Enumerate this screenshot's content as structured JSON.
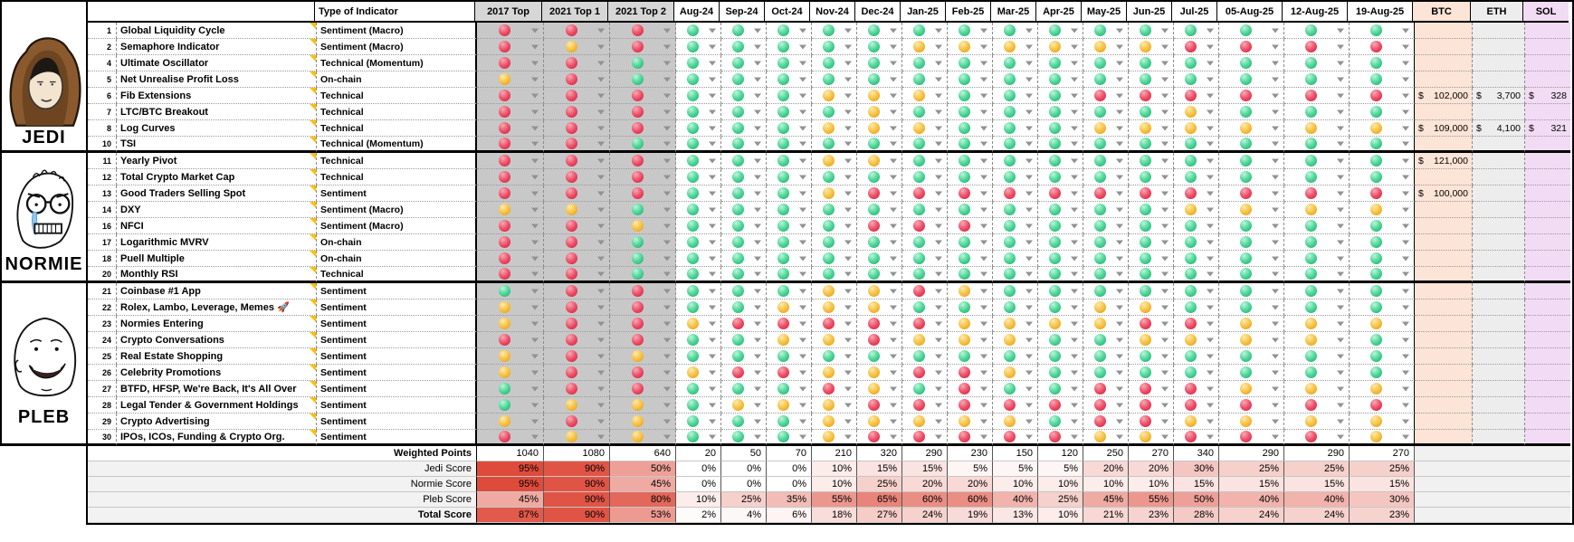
{
  "header": {
    "type_col": "Type of Indicator",
    "columns": [
      "2017 Top",
      "2021 Top 1",
      "2021 Top 2",
      "Aug-24",
      "Sep-24",
      "Oct-24",
      "Nov-24",
      "Dec-24",
      "Jan-25",
      "Feb-25",
      "Mar-25",
      "Apr-25",
      "May-25",
      "Jun-25",
      "Jul-25",
      "05-Aug-25",
      "12-Aug-25",
      "19-Aug-25"
    ],
    "price_columns": [
      "BTC",
      "ETH",
      "SOL"
    ]
  },
  "legend": {
    "dot_colors": {
      "G": "#3ECE8C",
      "Y": "#F5C244",
      "R": "#E94F63"
    }
  },
  "colors": {
    "gray_column_bg": "#C8C8C8",
    "btc_bg": "#FCE4D6",
    "eth_bg": "#EDEDED",
    "sol_bg": "#F2DBF4",
    "score_scale_max_red": "#DE4B3B",
    "note_triangle": "#FFC000"
  },
  "groups": [
    {
      "name": "JEDI",
      "avatar": "hooded-wojak-avatar",
      "rows": [
        {
          "num": 1,
          "label": "Global Liquidity Cycle",
          "type": "Sentiment (Macro)",
          "dots": "RRRGGGGGGGGGGGGGGG"
        },
        {
          "num": 2,
          "label": "Semaphore Indicator",
          "type": "Sentiment (Macro)",
          "dots": "RYRGGGGGYYYYYYRRRR"
        },
        {
          "num": 4,
          "label": "Ultimate Oscillator",
          "type": "Technical (Momentum)",
          "dots": "RRGGGGGGGGGGGGGGGG"
        },
        {
          "num": 5,
          "label": "Net Unrealise Profit Loss",
          "type": "On-chain",
          "dots": "YRGGGGGGGGGGGGGGGG"
        },
        {
          "num": 6,
          "label": "Fib Extensions",
          "type": "Technical",
          "dots": "RRRGGGYYYGGGRRRRRR",
          "prices": {
            "btc": "$ 102,000",
            "eth": "$ 3,700",
            "sol": "$ 328"
          }
        },
        {
          "num": 7,
          "label": "LTC/BTC Breakout",
          "type": "Technical",
          "dots": "RRRGGGGYGGGGGGYGGG"
        },
        {
          "num": 8,
          "label": "Log Curves",
          "type": "Technical",
          "dots": "RRRGGGYYYGGGYYYYYY",
          "prices": {
            "btc": "$ 109,000",
            "eth": "$ 4,100",
            "sol": "$ 321"
          }
        },
        {
          "num": 10,
          "label": "TSI",
          "type": "Technical (Momentum)",
          "dots": "RRGGGGGGGGGGGGGGGG"
        }
      ]
    },
    {
      "name": "NORMIE",
      "avatar": "crying-glasses-wojak-avatar",
      "rows": [
        {
          "num": 11,
          "label": "Yearly Pivot",
          "type": "Technical",
          "dots": "RRRGGGYYGGGGGGGGGG",
          "prices": {
            "btc": "$ 121,000"
          }
        },
        {
          "num": 12,
          "label": "Total Crypto Market Cap",
          "type": "Technical",
          "dots": "RRRGGGGGGGGGGGGGGG"
        },
        {
          "num": 13,
          "label": "Good Traders Selling Spot",
          "type": "Sentiment",
          "dots": "RRRGGGYRRRRRRRRRRR",
          "prices": {
            "btc": "$ 100,000"
          }
        },
        {
          "num": 14,
          "label": "DXY",
          "type": "Sentiment (Macro)",
          "dots": "YYGGGGGGGGGGGGYYYY"
        },
        {
          "num": 16,
          "label": "NFCI",
          "type": "Sentiment (Macro)",
          "dots": "RRYGGGGRRRGGGGGGGG"
        },
        {
          "num": 17,
          "label": "Logarithmic MVRV",
          "type": "On-chain",
          "dots": "RRGGGGGGGGGGGGGGGG"
        },
        {
          "num": 18,
          "label": "Puell Multiple",
          "type": "On-chain",
          "dots": "RRGGGGGGGGGGGGGGGG"
        },
        {
          "num": 20,
          "label": "Monthly RSI",
          "type": "Technical",
          "dots": "RRGGGGGGGGGGGGGGGG"
        }
      ]
    },
    {
      "name": "PLEB",
      "avatar": "smiling-wojak-avatar",
      "rows": [
        {
          "num": 21,
          "label": "Coinbase #1 App",
          "type": "Sentiment",
          "dots": "GRRGGGYYRYGGGGGGGG"
        },
        {
          "num": 22,
          "label": "Rolex, Lambo, Leverage, Memes 🚀",
          "type": "Sentiment",
          "dots": "YRRGGYYYGGGGYYGGGG"
        },
        {
          "num": 23,
          "label": "Normies Entering",
          "type": "Sentiment",
          "dots": "YRRYRRRRRYYYYRRYYY"
        },
        {
          "num": 24,
          "label": "Crypto Conversations",
          "type": "Sentiment",
          "dots": "RRRGGYYRYYYGGYYYYG"
        },
        {
          "num": 25,
          "label": "Real Estate Shopping",
          "type": "Sentiment",
          "dots": "YRYGGGGGGGGGGGGGGG"
        },
        {
          "num": 26,
          "label": "Celebrity Promotions",
          "type": "Sentiment",
          "dots": "YRRYRRYYRRYGGGGGGG"
        },
        {
          "num": 27,
          "label": "BTFD, HFSP, We're Back, It's All Over",
          "type": "Sentiment",
          "dots": "GRRGGGRYGRGGRRRYYY"
        },
        {
          "num": 28,
          "label": "Legal Tender & Government Holdings",
          "type": "Sentiment",
          "dots": "GYYGYYYRRRRRRRRRRR"
        },
        {
          "num": 29,
          "label": "Crypto Advertising",
          "type": "Sentiment",
          "dots": "YRYGGGYYYYYGRRYYYY"
        },
        {
          "num": 30,
          "label": "IPOs, ICOs, Funding & Crypto Org.",
          "type": "Sentiment",
          "dots": "RYYGGGYRRRRRYYRRRY"
        }
      ]
    }
  ],
  "summary": {
    "rows": [
      {
        "label": "Weighted Points",
        "label_bold": true,
        "unit": "",
        "values": [
          1040,
          1080,
          640,
          20,
          50,
          70,
          210,
          320,
          290,
          230,
          150,
          120,
          250,
          270,
          340,
          290,
          290,
          270
        ]
      },
      {
        "label": "Jedi Score",
        "label_bold": false,
        "unit": "%",
        "values": [
          95,
          90,
          50,
          0,
          0,
          0,
          10,
          15,
          15,
          5,
          5,
          5,
          20,
          20,
          30,
          25,
          25,
          25
        ]
      },
      {
        "label": "Normie Score",
        "label_bold": false,
        "unit": "%",
        "values": [
          95,
          90,
          45,
          0,
          0,
          0,
          10,
          25,
          20,
          20,
          10,
          10,
          10,
          10,
          15,
          15,
          15,
          15
        ]
      },
      {
        "label": "Pleb Score",
        "label_bold": false,
        "unit": "%",
        "values": [
          45,
          90,
          80,
          10,
          25,
          35,
          55,
          65,
          60,
          60,
          40,
          25,
          45,
          55,
          50,
          40,
          40,
          30
        ]
      },
      {
        "label": "Total Score",
        "label_bold": true,
        "unit": "%",
        "values": [
          87,
          90,
          53,
          2,
          4,
          6,
          18,
          27,
          24,
          19,
          13,
          10,
          21,
          23,
          28,
          24,
          24,
          23
        ]
      }
    ]
  }
}
